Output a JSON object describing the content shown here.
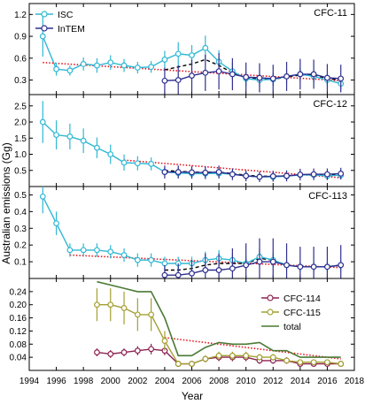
{
  "colors": {
    "isc": "#30b8d4",
    "intem": "#2f2f8f",
    "model_dash": "#000000",
    "trend": "#e8141c",
    "cfc114": "#8b2252",
    "cfc115": "#a3a032",
    "total": "#4a7a35"
  },
  "chart_data": {
    "type": "line",
    "xlabel": "Year",
    "ylabel": "Australian emissions (Gg)",
    "xlim": [
      1994,
      2018
    ],
    "x_ticks": [
      1994,
      1996,
      1998,
      2000,
      2002,
      2004,
      2006,
      2008,
      2010,
      2012,
      2014,
      2016,
      2018
    ],
    "panels": [
      {
        "id": "cfc11",
        "label": "CFC-11",
        "ylim": [
          0.1,
          1.35
        ],
        "y_ticks": [
          0.3,
          0.6,
          0.9,
          1.2
        ],
        "y_tick_labels": [
          "0.3",
          "0.6",
          "0.9",
          "1.2"
        ],
        "legend": [
          "ISC",
          "InTEM"
        ],
        "series": [
          {
            "name": "ISC",
            "kind": "marker-line",
            "color": "isc",
            "x": [
              1995,
              1996,
              1997,
              1998,
              1999,
              2000,
              2001,
              2002,
              2003,
              2004,
              2005,
              2006,
              2007,
              2008,
              2009,
              2010,
              2011,
              2012,
              2013,
              2014,
              2015,
              2016,
              2017
            ],
            "y": [
              0.9,
              0.45,
              0.43,
              0.52,
              0.5,
              0.54,
              0.5,
              0.47,
              0.48,
              0.58,
              0.66,
              0.64,
              0.74,
              0.55,
              0.42,
              0.32,
              0.3,
              0.31,
              0.35,
              0.38,
              0.35,
              0.3,
              0.25
            ],
            "err": [
              0.28,
              0.09,
              0.07,
              0.09,
              0.1,
              0.1,
              0.09,
              0.08,
              0.08,
              0.12,
              0.16,
              0.14,
              0.17,
              0.16,
              0.12,
              0.1,
              0.09,
              0.09,
              0.09,
              0.09,
              0.09,
              0.08,
              0.08
            ]
          },
          {
            "name": "InTEM",
            "kind": "marker-line",
            "color": "intem",
            "x": [
              2004,
              2005,
              2006,
              2007,
              2008,
              2009,
              2010,
              2011,
              2012,
              2013,
              2014,
              2015,
              2016,
              2017
            ],
            "y": [
              0.29,
              0.3,
              0.36,
              0.4,
              0.42,
              0.38,
              0.34,
              0.33,
              0.32,
              0.35,
              0.38,
              0.38,
              0.33,
              0.32
            ],
            "err": [
              0.18,
              0.2,
              0.22,
              0.25,
              0.25,
              0.22,
              0.2,
              0.2,
              0.19,
              0.2,
              0.21,
              0.2,
              0.19,
              0.19
            ]
          },
          {
            "name": "",
            "kind": "dashed",
            "color": "model_dash",
            "x": [
              2004,
              2005,
              2006,
              2007,
              2008,
              2009,
              2010,
              2011,
              2012,
              2013,
              2014,
              2015,
              2016,
              2017
            ],
            "y": [
              0.44,
              0.48,
              0.52,
              0.58,
              0.5,
              0.4,
              0.33,
              0.31,
              0.31,
              0.34,
              0.37,
              0.37,
              0.32,
              0.3
            ]
          },
          {
            "name": "",
            "kind": "trend",
            "color": "trend",
            "x": [
              1995,
              2017
            ],
            "y": [
              0.54,
              0.29
            ]
          }
        ]
      },
      {
        "id": "cfc12",
        "label": "CFC-12",
        "ylim": [
          0.0,
          2.85
        ],
        "y_ticks": [
          0.5,
          1.0,
          1.5,
          2.0,
          2.5
        ],
        "y_tick_labels": [
          "0.5",
          "1.0",
          "1.5",
          "2.0",
          "2.5"
        ],
        "series": [
          {
            "name": "ISC",
            "kind": "marker-line",
            "color": "isc",
            "x": [
              1995,
              1996,
              1997,
              1998,
              1999,
              2000,
              2001,
              2002,
              2003,
              2004,
              2005,
              2006,
              2007,
              2008,
              2009,
              2010,
              2011,
              2012,
              2013,
              2014,
              2015,
              2016,
              2017
            ],
            "y": [
              2.0,
              1.6,
              1.55,
              1.42,
              1.2,
              1.0,
              0.74,
              0.72,
              0.7,
              0.45,
              0.42,
              0.4,
              0.4,
              0.41,
              0.38,
              0.33,
              0.3,
              0.3,
              0.32,
              0.36,
              0.36,
              0.33,
              0.35
            ],
            "err": [
              0.65,
              0.45,
              0.4,
              0.38,
              0.32,
              0.3,
              0.25,
              0.22,
              0.2,
              0.14,
              0.14,
              0.13,
              0.13,
              0.13,
              0.12,
              0.11,
              0.1,
              0.1,
              0.1,
              0.11,
              0.11,
              0.11,
              0.11
            ]
          },
          {
            "name": "InTEM",
            "kind": "marker-line",
            "color": "intem",
            "x": [
              2004,
              2005,
              2006,
              2007,
              2008,
              2009,
              2010,
              2011,
              2012,
              2013,
              2014,
              2015,
              2016,
              2017
            ],
            "y": [
              0.45,
              0.45,
              0.44,
              0.43,
              0.45,
              0.38,
              0.33,
              0.3,
              0.32,
              0.33,
              0.37,
              0.38,
              0.38,
              0.4
            ],
            "err": [
              0.2,
              0.2,
              0.2,
              0.2,
              0.2,
              0.18,
              0.17,
              0.16,
              0.17,
              0.17,
              0.18,
              0.18,
              0.18,
              0.18
            ]
          },
          {
            "name": "",
            "kind": "dashed",
            "color": "model_dash",
            "x": [
              2004,
              2005,
              2006,
              2007,
              2008,
              2009,
              2010,
              2011,
              2012,
              2013,
              2014,
              2015,
              2016,
              2017
            ],
            "y": [
              0.5,
              0.47,
              0.45,
              0.44,
              0.45,
              0.4,
              0.35,
              0.32,
              0.32,
              0.33,
              0.36,
              0.37,
              0.36,
              0.37
            ]
          },
          {
            "name": "",
            "kind": "trend",
            "color": "trend",
            "x": [
              2001,
              2017
            ],
            "y": [
              0.82,
              0.27
            ]
          }
        ]
      },
      {
        "id": "cfc113",
        "label": "CFC-113",
        "ylim": [
          0.0,
          0.55
        ],
        "y_ticks": [
          0.1,
          0.2,
          0.3,
          0.4,
          0.5
        ],
        "y_tick_labels": [
          "0.1",
          "0.2",
          "0.3",
          "0.4",
          "0.5"
        ],
        "series": [
          {
            "name": "ISC",
            "kind": "marker-line",
            "color": "isc",
            "x": [
              1995,
              1996,
              1997,
              1998,
              1999,
              2000,
              2001,
              2002,
              2003,
              2004,
              2005,
              2006,
              2007,
              2008,
              2009,
              2010,
              2011,
              2012,
              2013,
              2014,
              2015,
              2016,
              2017
            ],
            "y": [
              0.49,
              0.33,
              0.17,
              0.17,
              0.17,
              0.16,
              0.14,
              0.11,
              0.11,
              0.09,
              0.09,
              0.09,
              0.11,
              0.12,
              0.11,
              0.09,
              0.13,
              0.11,
              0.08,
              0.07,
              0.07,
              0.07,
              0.08
            ],
            "err": [
              0.1,
              0.07,
              0.04,
              0.04,
              0.04,
              0.04,
              0.04,
              0.04,
              0.04,
              0.04,
              0.04,
              0.04,
              0.05,
              0.05,
              0.04,
              0.04,
              0.05,
              0.04,
              0.03,
              0.03,
              0.03,
              0.03,
              0.03
            ]
          },
          {
            "name": "InTEM",
            "kind": "marker-line",
            "color": "intem",
            "x": [
              2004,
              2005,
              2006,
              2007,
              2008,
              2009,
              2010,
              2011,
              2012,
              2013,
              2014,
              2015,
              2016,
              2017
            ],
            "y": [
              0.02,
              0.02,
              0.03,
              0.05,
              0.05,
              0.06,
              0.08,
              0.1,
              0.1,
              0.08,
              0.07,
              0.07,
              0.07,
              0.08
            ],
            "err": [
              0.06,
              0.07,
              0.08,
              0.1,
              0.1,
              0.12,
              0.13,
              0.14,
              0.14,
              0.13,
              0.12,
              0.12,
              0.12,
              0.12
            ]
          },
          {
            "name": "",
            "kind": "dashed",
            "color": "model_dash",
            "x": [
              2004,
              2005,
              2006,
              2007,
              2008,
              2009,
              2010,
              2011,
              2012,
              2013,
              2014,
              2015,
              2016,
              2017
            ],
            "y": [
              0.05,
              0.05,
              0.06,
              0.08,
              0.09,
              0.09,
              0.09,
              0.12,
              0.11,
              0.08,
              0.07,
              0.07,
              0.07,
              0.08
            ]
          },
          {
            "name": "",
            "kind": "trend",
            "color": "trend",
            "x": [
              1997,
              2017
            ],
            "y": [
              0.14,
              0.065
            ]
          }
        ]
      },
      {
        "id": "cfc114_115",
        "label": "",
        "ylim": [
          0.0,
          0.28
        ],
        "y_ticks": [
          0.04,
          0.08,
          0.12,
          0.16,
          0.2,
          0.24
        ],
        "y_tick_labels": [
          "0.04",
          "0.08",
          "0.12",
          "0.16",
          "0.20",
          "0.24"
        ],
        "legend": [
          "CFC-114",
          "CFC-115",
          "total"
        ],
        "series": [
          {
            "name": "CFC-114",
            "kind": "marker-line",
            "color": "cfc114",
            "x": [
              1999,
              2000,
              2001,
              2002,
              2003,
              2004,
              2005,
              2006,
              2007,
              2008,
              2009,
              2010,
              2011,
              2012,
              2013,
              2014,
              2015,
              2016,
              2017
            ],
            "y": [
              0.055,
              0.05,
              0.055,
              0.06,
              0.065,
              0.06,
              0.02,
              0.02,
              0.035,
              0.04,
              0.04,
              0.04,
              0.03,
              0.03,
              0.03,
              0.02,
              0.02,
              0.02,
              0.02
            ],
            "err": [
              0.012,
              0.012,
              0.012,
              0.014,
              0.016,
              0.014,
              0.006,
              0.006,
              0.01,
              0.012,
              0.012,
              0.012,
              0.01,
              0.01,
              0.01,
              0.006,
              0.006,
              0.006,
              0.006
            ]
          },
          {
            "name": "CFC-115",
            "kind": "marker-line",
            "color": "cfc115",
            "x": [
              1999,
              2000,
              2001,
              2002,
              2003,
              2004,
              2005,
              2006,
              2007,
              2008,
              2009,
              2010,
              2011,
              2012,
              2013,
              2014,
              2015,
              2016,
              2017
            ],
            "y": [
              0.2,
              0.2,
              0.19,
              0.17,
              0.17,
              0.09,
              0.02,
              0.02,
              0.035,
              0.045,
              0.045,
              0.045,
              0.04,
              0.04,
              0.03,
              0.025,
              0.025,
              0.025,
              0.02
            ],
            "err": [
              0.05,
              0.05,
              0.05,
              0.05,
              0.05,
              0.03,
              0.006,
              0.006,
              0.01,
              0.012,
              0.012,
              0.012,
              0.01,
              0.01,
              0.008,
              0.006,
              0.006,
              0.006,
              0.006
            ]
          },
          {
            "name": "total",
            "kind": "line",
            "color": "total",
            "x": [
              1999,
              2000,
              2001,
              2002,
              2003,
              2004,
              2005,
              2006,
              2007,
              2008,
              2009,
              2010,
              2011,
              2012,
              2013,
              2014,
              2015,
              2016,
              2017
            ],
            "y": [
              0.27,
              0.26,
              0.25,
              0.24,
              0.24,
              0.16,
              0.045,
              0.045,
              0.07,
              0.085,
              0.08,
              0.08,
              0.085,
              0.06,
              0.06,
              0.04,
              0.04,
              0.04,
              0.04
            ]
          },
          {
            "name": "",
            "kind": "trend",
            "color": "trend",
            "x": [
              2004,
              2017
            ],
            "y": [
              0.1,
              0.035
            ]
          }
        ]
      }
    ]
  }
}
